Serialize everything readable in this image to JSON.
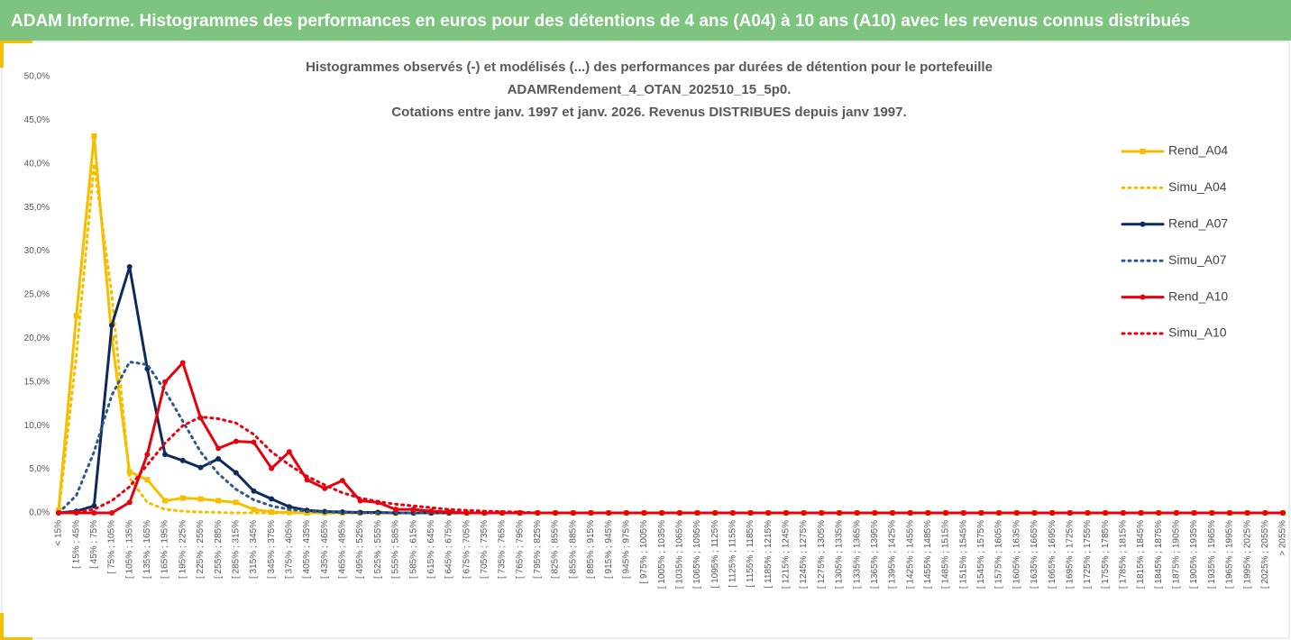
{
  "header": {
    "title": "ADAM Informe. Histogrammes des performances en euros pour des détentions de 4 ans (A04) à 10 ans (A10) avec les revenus connus distribués"
  },
  "chart_data": {
    "type": "line",
    "title": [
      "Histogrammes observés (-) et modélisés (...) des performances par durées de détention pour le portefeuille",
      "ADAMRendement_4_OTAN_202510_15_5p0.",
      "Cotations entre janv. 1997 et janv. 2026. Revenus DISTRIBUES depuis janv 1997."
    ],
    "categories": [
      "< 15%",
      "[ 15% ; 45%",
      "[ 45% ; 75%",
      "[ 75% ; 105%",
      "[ 105% ; 135%",
      "[ 135% ; 165%",
      "[ 165% ; 195%",
      "[ 195% ; 225%",
      "[ 225% ; 255%",
      "[ 255% ; 285%",
      "[ 285% ; 315%",
      "[ 315% ; 345%",
      "[ 345% ; 375%",
      "[ 375% ; 405%",
      "[ 405% ; 435%",
      "[ 435% ; 465%",
      "[ 465% ; 495%",
      "[ 495% ; 525%",
      "[ 525% ; 555%",
      "[ 555% ; 585%",
      "[ 585% ; 615%",
      "[ 615% ; 645%",
      "[ 645% ; 675%",
      "[ 675% ; 705%",
      "[ 705% ; 735%",
      "[ 735% ; 765%",
      "[ 765% ; 795%",
      "[ 795% ; 825%",
      "[ 825% ; 855%",
      "[ 855% ; 885%",
      "[ 885% ; 915%",
      "[ 915% ; 945%",
      "[ 945% ; 975%",
      "[ 975% ; 1005%",
      "[ 1005% ; 1035%",
      "[ 1035% ; 1065%",
      "[ 1065% ; 1095%",
      "[ 1095% ; 1125%",
      "[ 1125% ; 1155%",
      "[ 1155% ; 1185%",
      "[ 1185% ; 1215%",
      "[ 1215% ; 1245%",
      "[ 1245% ; 1275%",
      "[ 1275% ; 1305%",
      "[ 1305% ; 1335%",
      "[ 1335% ; 1365%",
      "[ 1365% ; 1395%",
      "[ 1395% ; 1425%",
      "[ 1425% ; 1455%",
      "[ 1455% ; 1485%",
      "[ 1485% ; 1515%",
      "[ 1515% ; 1545%",
      "[ 1545% ; 1575%",
      "[ 1575% ; 1605%",
      "[ 1605% ; 1635%",
      "[ 1635% ; 1665%",
      "[ 1665% ; 1695%",
      "[ 1695% ; 1725%",
      "[ 1725% ; 1755%",
      "[ 1755% ; 1785%",
      "[ 1785% ; 1815%",
      "[ 1815% ; 1845%",
      "[ 1845% ; 1875%",
      "[ 1875% ; 1905%",
      "[ 1905% ; 1935%",
      "[ 1935% ; 1965%",
      "[ 1965% ; 1995%",
      "[ 1995% ; 2025%",
      "[ 2025% ; 2055%",
      "> 2055%"
    ],
    "series": [
      {
        "name": "Rend_A04",
        "color": "#f5bf00",
        "dash": false,
        "marker": "square",
        "values": [
          0.3,
          22.6,
          43.2,
          20,
          4.7,
          3.8,
          1.4,
          1.7,
          1.6,
          1.4,
          1.2,
          0.4,
          0.1,
          0.05,
          0,
          0,
          0,
          0,
          0,
          0,
          0,
          0,
          0,
          0,
          0,
          0,
          0,
          0,
          0,
          0,
          0,
          0,
          0,
          0,
          0,
          0,
          0,
          0,
          0,
          0,
          0,
          0,
          0,
          0,
          0,
          0,
          0,
          0,
          0,
          0,
          0,
          0,
          0,
          0,
          0,
          0,
          0,
          0,
          0,
          0,
          0,
          0,
          0,
          0,
          0,
          0,
          0,
          0,
          0,
          0
        ]
      },
      {
        "name": "Simu_A04",
        "color": "#f5bf00",
        "dash": true,
        "marker": "none",
        "values": [
          0,
          18,
          40,
          25,
          4,
          1.2,
          0.4,
          0.2,
          0.1,
          0.05,
          0,
          0,
          0,
          0,
          0,
          0,
          0,
          0,
          0,
          0,
          0,
          0,
          0,
          0,
          0,
          0,
          0,
          0,
          0,
          0,
          0,
          0,
          0,
          0,
          0,
          0,
          0,
          0,
          0,
          0,
          0,
          0,
          0,
          0,
          0,
          0,
          0,
          0,
          0,
          0,
          0,
          0,
          0,
          0,
          0,
          0,
          0,
          0,
          0,
          0,
          0,
          0,
          0,
          0,
          0,
          0,
          0,
          0,
          0,
          0
        ]
      },
      {
        "name": "Rend_A07",
        "color": "#0e2a5c",
        "dash": false,
        "marker": "circle",
        "values": [
          0,
          0.2,
          0.8,
          21.5,
          28.2,
          16.5,
          6.7,
          6,
          5.2,
          6.2,
          4.6,
          2.5,
          1.6,
          0.7,
          0.3,
          0.15,
          0.1,
          0.05,
          0.05,
          0,
          0,
          0,
          0,
          0,
          0,
          0,
          0,
          0,
          0,
          0,
          0,
          0,
          0,
          0,
          0,
          0,
          0,
          0,
          0,
          0,
          0,
          0,
          0,
          0,
          0,
          0,
          0,
          0,
          0,
          0,
          0,
          0,
          0,
          0,
          0,
          0,
          0,
          0,
          0,
          0,
          0,
          0,
          0,
          0,
          0,
          0,
          0,
          0,
          0,
          0
        ]
      },
      {
        "name": "Simu_A07",
        "color": "#2e5a8a",
        "dash": true,
        "marker": "none",
        "values": [
          0,
          2,
          7,
          13.5,
          17.3,
          17,
          14,
          10.5,
          7,
          4.5,
          2.7,
          1.5,
          0.8,
          0.4,
          0.2,
          0.1,
          0.05,
          0,
          0,
          0,
          0,
          0,
          0,
          0,
          0,
          0,
          0,
          0,
          0,
          0,
          0,
          0,
          0,
          0,
          0,
          0,
          0,
          0,
          0,
          0,
          0,
          0,
          0,
          0,
          0,
          0,
          0,
          0,
          0,
          0,
          0,
          0,
          0,
          0,
          0,
          0,
          0,
          0,
          0,
          0,
          0,
          0,
          0,
          0,
          0,
          0,
          0,
          0,
          0,
          0
        ]
      },
      {
        "name": "Rend_A10",
        "color": "#e8000f",
        "dash": false,
        "marker": "circle",
        "values": [
          0,
          0,
          0,
          0,
          1.2,
          6.7,
          15,
          17.2,
          10.9,
          7.4,
          8.2,
          8.1,
          5.1,
          7,
          3.8,
          2.8,
          3.7,
          1.4,
          1.2,
          0.4,
          0.4,
          0.2,
          0.1,
          0,
          0,
          0,
          0,
          0,
          0,
          0,
          0,
          0,
          0,
          0,
          0,
          0,
          0,
          0,
          0,
          0,
          0,
          0,
          0,
          0,
          0,
          0,
          0,
          0,
          0,
          0,
          0,
          0,
          0,
          0,
          0,
          0,
          0,
          0,
          0,
          0,
          0,
          0,
          0,
          0,
          0,
          0,
          0,
          0,
          0,
          0
        ]
      },
      {
        "name": "Simu_A10",
        "color": "#e8000f",
        "dash": true,
        "marker": "none",
        "values": [
          0,
          0.1,
          0.4,
          1.4,
          3,
          5.5,
          8,
          10,
          11,
          10.8,
          10.3,
          9,
          7,
          5.5,
          4.2,
          3.2,
          2.3,
          1.7,
          1.3,
          1,
          0.8,
          0.6,
          0.4,
          0.3,
          0.2,
          0.15,
          0.1,
          0,
          0,
          0,
          0,
          0,
          0,
          0,
          0,
          0,
          0,
          0,
          0,
          0,
          0,
          0,
          0,
          0,
          0,
          0,
          0,
          0,
          0,
          0,
          0,
          0,
          0,
          0,
          0,
          0,
          0,
          0,
          0,
          0,
          0,
          0,
          0,
          0,
          0,
          0,
          0,
          0,
          0,
          0
        ]
      }
    ],
    "ylim": [
      0,
      50
    ],
    "yticks": [
      {
        "value": 0,
        "label": "0,0%"
      },
      {
        "value": 5,
        "label": "5,0%"
      },
      {
        "value": 10,
        "label": "10,0%"
      },
      {
        "value": 15,
        "label": "15,0%"
      },
      {
        "value": 20,
        "label": "20,0%"
      },
      {
        "value": 25,
        "label": "25,0%"
      },
      {
        "value": 30,
        "label": "30,0%"
      },
      {
        "value": 35,
        "label": "35,0%"
      },
      {
        "value": 40,
        "label": "40,0%"
      },
      {
        "value": 45,
        "label": "45,0%"
      },
      {
        "value": 50,
        "label": "50,0%"
      }
    ],
    "grid": false,
    "legend": "right"
  }
}
